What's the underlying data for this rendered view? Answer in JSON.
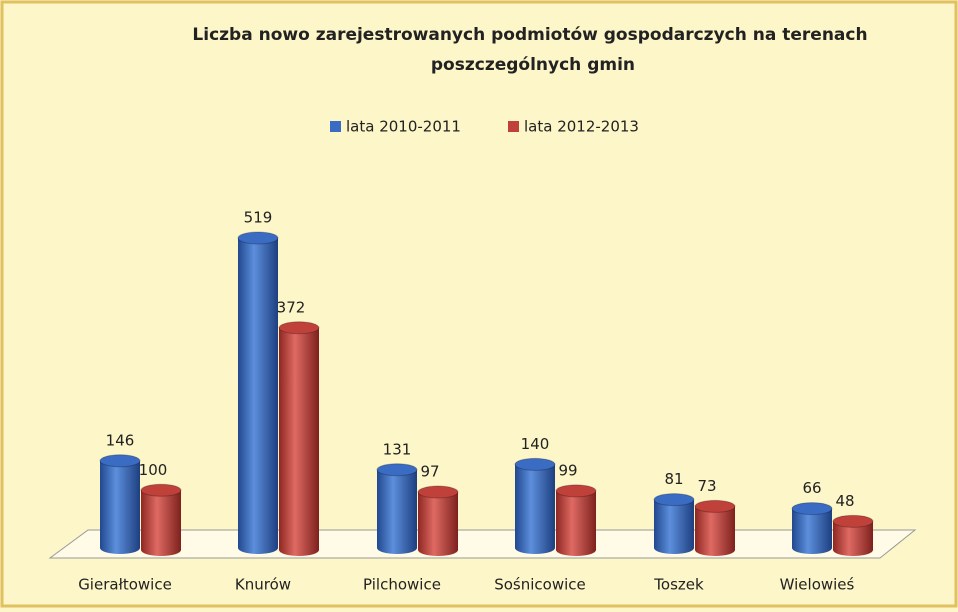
{
  "chart_data": {
    "type": "bar3d",
    "title": "Liczba nowo zarejestrowanych podmiotów gospodarczych na terenach poszczególnych gmin",
    "categories": [
      "Gierałtowice",
      "Knurów",
      "Pilchowice",
      "Sośnicowice",
      "Toszek",
      "Wielowieś"
    ],
    "series": [
      {
        "name": "lata 2010-2011",
        "color": "#3a6cc4",
        "values": [
          146,
          519,
          131,
          140,
          81,
          66
        ]
      },
      {
        "name": "lata 2012-2013",
        "color": "#c0403a",
        "values": [
          100,
          372,
          97,
          99,
          73,
          48
        ]
      }
    ],
    "legend": "top"
  }
}
